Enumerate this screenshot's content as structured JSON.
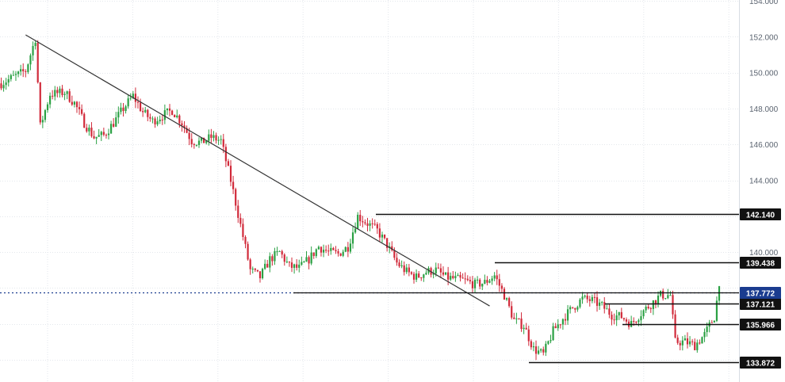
{
  "chart_data": {
    "type": "candlestick",
    "title": "",
    "xlabel": "",
    "ylabel": "",
    "ylim": [
      133.4,
      154.2
    ],
    "grid": true,
    "colors": {
      "up": "#2aa043",
      "down": "#d12a3a",
      "level_line": "#111111",
      "trendline": "#333333",
      "current": "#1a3c8f"
    },
    "y_ticks": [
      {
        "value": 154,
        "label": "154.000"
      },
      {
        "value": 152,
        "label": "152.000"
      },
      {
        "value": 150,
        "label": "150.000"
      },
      {
        "value": 148,
        "label": "148.000"
      },
      {
        "value": 146,
        "label": "146.000"
      },
      {
        "value": 144,
        "label": "144.000"
      },
      {
        "value": 140,
        "label": "140.000"
      }
    ],
    "levels": [
      {
        "label": "142.140",
        "value": 142.14
      },
      {
        "label": "139.438",
        "value": 139.438
      },
      {
        "label": "137.121",
        "value": 137.121
      },
      {
        "label": "135.966",
        "value": 135.966
      },
      {
        "label": "133.872",
        "value": 133.872
      }
    ],
    "current_price": {
      "label": "137.772",
      "value": 137.772
    },
    "trendline": {
      "from_index": 10,
      "from_price": 152.1,
      "to_index": 200,
      "to_price": 137.0
    },
    "series_path": [
      [
        0,
        149.4
      ],
      [
        10,
        150.1
      ],
      [
        14,
        151.9
      ],
      [
        16,
        147.0
      ],
      [
        20,
        148.8
      ],
      [
        26,
        148.9
      ],
      [
        30,
        148.3
      ],
      [
        34,
        147.2
      ],
      [
        38,
        146.4
      ],
      [
        42,
        146.5
      ],
      [
        46,
        147.2
      ],
      [
        50,
        148.0
      ],
      [
        54,
        148.7
      ],
      [
        58,
        147.8
      ],
      [
        62,
        147.3
      ],
      [
        66,
        147.6
      ],
      [
        70,
        147.9
      ],
      [
        74,
        147.2
      ],
      [
        78,
        146.2
      ],
      [
        82,
        146.1
      ],
      [
        86,
        146.4
      ],
      [
        90,
        146.2
      ],
      [
        94,
        144.0
      ],
      [
        98,
        141.5
      ],
      [
        102,
        139.0
      ],
      [
        106,
        138.6
      ],
      [
        110,
        139.6
      ],
      [
        114,
        140.0
      ],
      [
        118,
        139.2
      ],
      [
        122,
        139.1
      ],
      [
        126,
        139.6
      ],
      [
        130,
        140.3
      ],
      [
        134,
        140.0
      ],
      [
        138,
        139.9
      ],
      [
        142,
        140.3
      ],
      [
        146,
        142.0
      ],
      [
        150,
        141.6
      ],
      [
        154,
        141.2
      ],
      [
        158,
        140.4
      ],
      [
        162,
        139.4
      ],
      [
        166,
        138.9
      ],
      [
        170,
        138.6
      ],
      [
        174,
        138.9
      ],
      [
        178,
        139.0
      ],
      [
        182,
        138.6
      ],
      [
        186,
        138.5
      ],
      [
        190,
        138.4
      ],
      [
        194,
        138.2
      ],
      [
        198,
        138.3
      ],
      [
        202,
        138.7
      ],
      [
        206,
        137.6
      ],
      [
        210,
        136.2
      ],
      [
        214,
        135.9
      ],
      [
        218,
        134.6
      ],
      [
        222,
        134.3
      ],
      [
        226,
        135.6
      ],
      [
        230,
        136.3
      ],
      [
        234,
        136.9
      ],
      [
        238,
        137.4
      ],
      [
        242,
        137.3
      ],
      [
        246,
        137.0
      ],
      [
        250,
        136.5
      ],
      [
        254,
        136.4
      ],
      [
        258,
        136.0
      ],
      [
        262,
        136.6
      ],
      [
        266,
        137.1
      ],
      [
        270,
        137.6
      ],
      [
        274,
        137.6
      ],
      [
        276,
        135.0
      ],
      [
        280,
        135.0
      ],
      [
        284,
        134.8
      ],
      [
        288,
        135.4
      ],
      [
        292,
        136.4
      ],
      [
        294,
        138.1
      ]
    ]
  }
}
